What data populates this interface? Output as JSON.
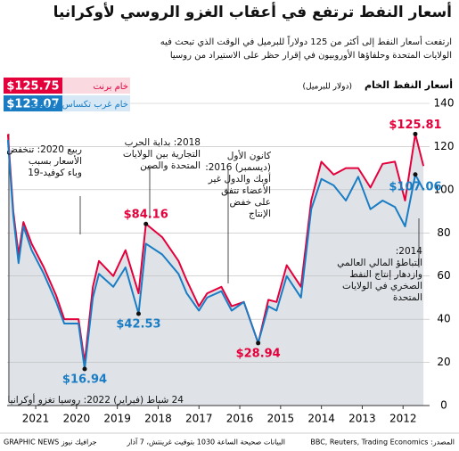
{
  "header": {
    "title": "أسعار النفط ترتفع في أعقاب الغزو الروسي لأوكرانيا",
    "subtitle": [
      "ارتفعت أسعار النفط إلى أكثر من 125 دولاراً للبرميل في الوقت الذي تبحث فيه",
      "الولايات المتحدة وحلفاؤها الأوروبيون في إقرار حظر على الاستيراد من روسيا"
    ]
  },
  "chart_data": {
    "type": "line",
    "y_label": "أسعار النفط الخام",
    "y_unit": "(دولار للبرميل)",
    "x": [
      2012.0,
      2012.2,
      2012.45,
      2012.7,
      2013.0,
      2013.3,
      2013.6,
      2013.9,
      2014.2,
      2014.5,
      2014.75,
      2015.0,
      2015.35,
      2015.6,
      2015.8,
      2016.05,
      2016.4,
      2016.7,
      2016.95,
      2017.3,
      2017.5,
      2017.8,
      2018.0,
      2018.4,
      2018.8,
      2018.98,
      2019.3,
      2019.6,
      2019.95,
      2020.1,
      2020.3,
      2020.45,
      2020.8,
      2021.0,
      2021.3,
      2021.6,
      2021.8,
      2021.92,
      2022.05,
      2022.18
    ],
    "series": [
      {
        "name": "خام برنت",
        "color": "#e4003b",
        "values": [
          111,
          125.81,
          95,
          113,
          112,
          101,
          110,
          110,
          107,
          113,
          95,
          55,
          65,
          48,
          49,
          28.94,
          48,
          46,
          55,
          52,
          46,
          58,
          67,
          78,
          84.16,
          52,
          72,
          60,
          67,
          55,
          20,
          40,
          40,
          51,
          64,
          75,
          85,
          70,
          90,
          125.75
        ],
        "value_labels": [
          null,
          "$125.81",
          null,
          null,
          null,
          null,
          null,
          null,
          null,
          null,
          null,
          null,
          null,
          null,
          null,
          "$28.94",
          null,
          null,
          null,
          null,
          null,
          null,
          null,
          null,
          "$84.16",
          null,
          null,
          null,
          null,
          null,
          null,
          null,
          null,
          null,
          null,
          null,
          null,
          null,
          null,
          "$125.75"
        ]
      },
      {
        "name": "خام غرب تكساس الوسيط",
        "color": "#1a7dc4",
        "values": [
          100,
          107.06,
          83,
          92,
          95,
          91,
          106,
          95,
          102,
          105,
          91,
          50,
          60,
          44,
          46,
          29,
          48,
          44,
          53,
          50,
          44,
          52,
          61,
          70,
          75,
          42.53,
          64,
          55,
          61,
          50,
          16.94,
          38,
          38,
          48,
          61,
          72,
          83,
          66,
          88,
          123.07
        ],
        "value_labels": [
          null,
          "$107.06",
          null,
          null,
          null,
          null,
          null,
          null,
          null,
          null,
          null,
          null,
          null,
          null,
          null,
          null,
          null,
          null,
          null,
          null,
          null,
          null,
          null,
          null,
          null,
          "$42.53",
          null,
          null,
          null,
          null,
          "$16.94",
          null,
          null,
          null,
          null,
          null,
          null,
          null,
          null,
          "$123.07"
        ]
      }
    ],
    "xlim": [
      2011.85,
      2022.2
    ],
    "x_reversed": true,
    "xticks": [
      {
        "value": 2012.5,
        "label": "2012"
      },
      {
        "value": 2013.5,
        "label": "2013"
      },
      {
        "value": 2014.5,
        "label": "2014"
      },
      {
        "value": 2015.5,
        "label": "2015"
      },
      {
        "value": 2016.5,
        "label": "2016"
      },
      {
        "value": 2017.5,
        "label": "2017"
      },
      {
        "value": 2018.5,
        "label": "2018"
      },
      {
        "value": 2019.5,
        "label": "2019"
      },
      {
        "value": 2020.5,
        "label": "2020"
      },
      {
        "value": 2021.5,
        "label": "2021"
      }
    ],
    "ylim": [
      0,
      140
    ],
    "yticks": [
      0,
      20,
      40,
      60,
      80,
      100,
      120,
      140
    ],
    "grid": true,
    "annotations": [
      [
        "ربيع 2020: تنخفض",
        "الأسعار بسبب",
        "وباء كوفيد-19"
      ],
      [
        "2018: بداية الحرب",
        "التجارية بين الولايات",
        "المتحدة والصين"
      ],
      [
        "كانون الأول",
        "(ديسمبر) 2016:",
        "أوبك والدول غير",
        "الأعضاء تتفق",
        "على خفض",
        "الإنتاج"
      ],
      [
        "2014:",
        "التباطؤ المالي العالمي",
        "وازدهار إنتاج النفط",
        "الصخري في الولايات",
        "المتحدة"
      ],
      [
        "24 شباط (فبراير) 2022: روسيا تغزو أوكرانيا"
      ]
    ]
  },
  "footer": {
    "source": "المصدر: BBC, Reuters, Trading Economics",
    "note": "البيانات صحيحة الساعة 1030 بتوقيت غرينتش، 7 آذار",
    "credit": "GRAPHIC NEWS جرافيك نيوز"
  }
}
